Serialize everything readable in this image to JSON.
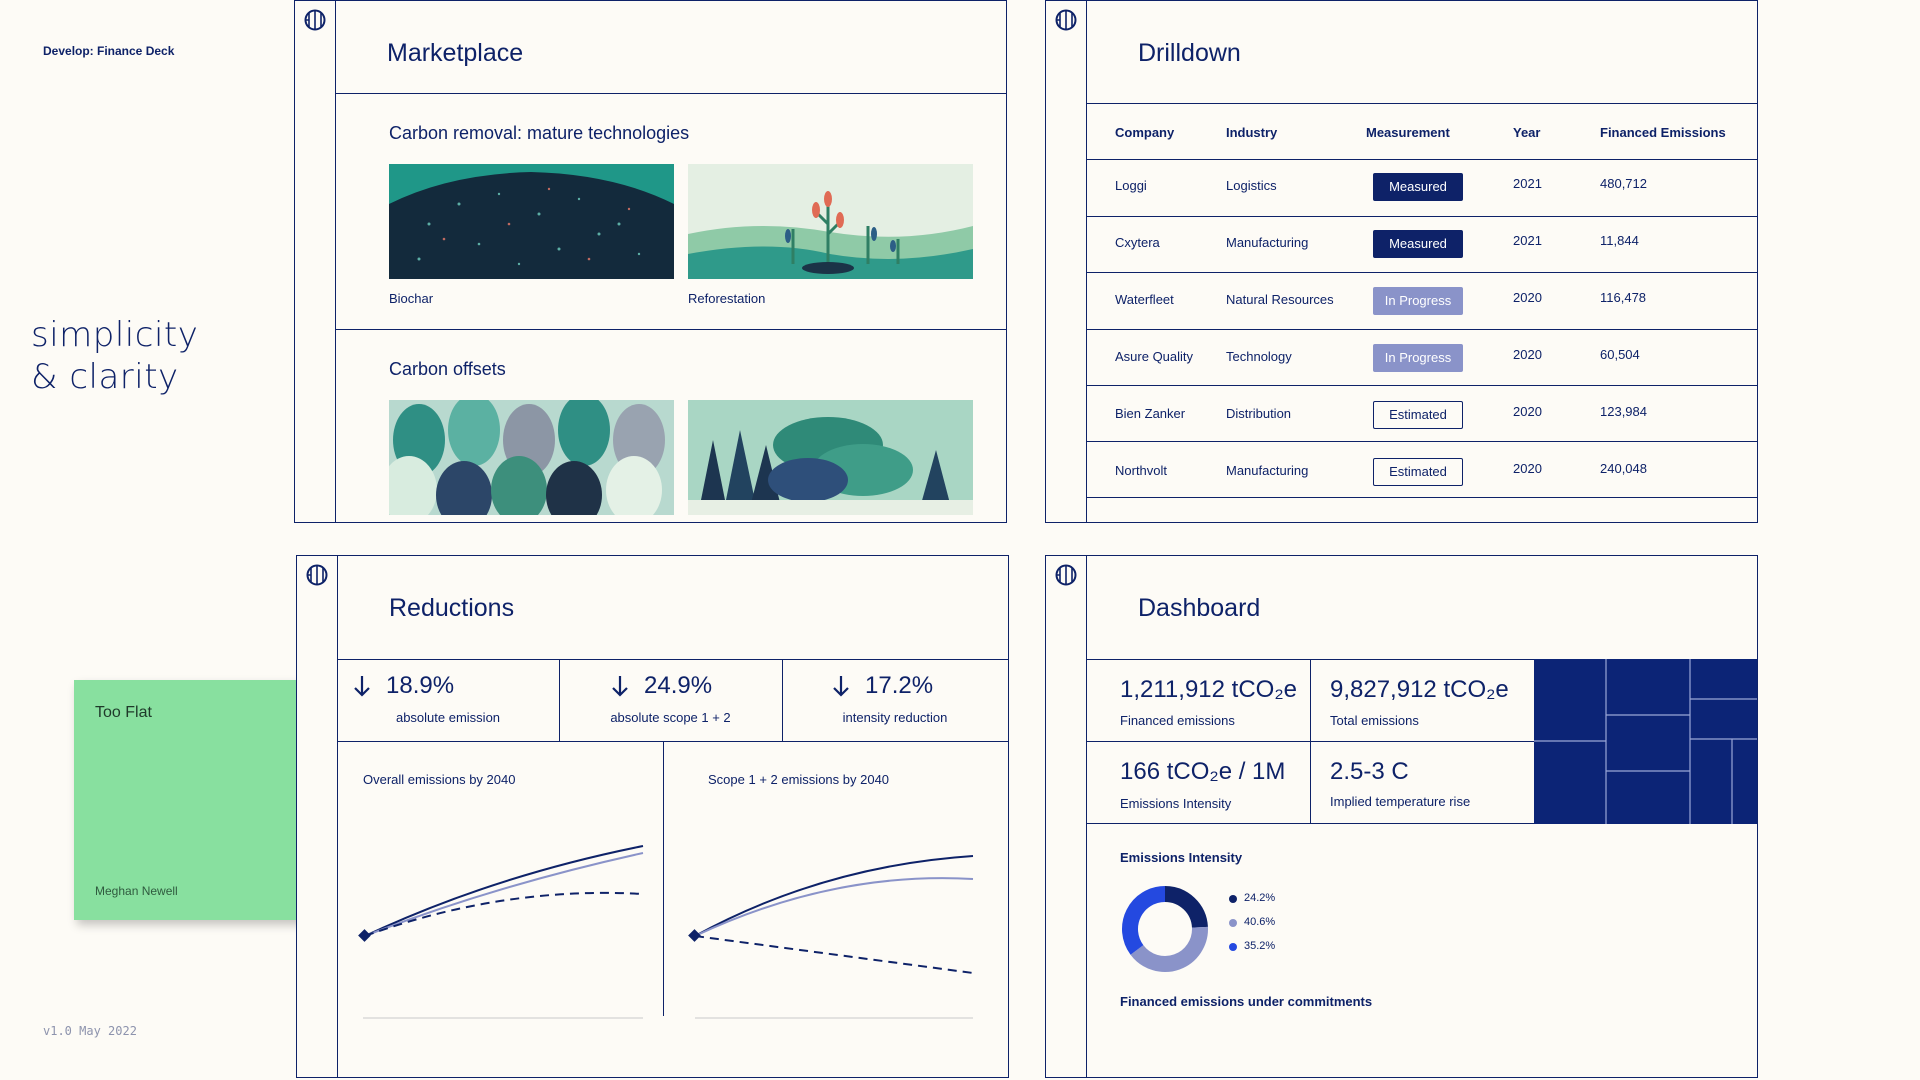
{
  "deck": {
    "label": "Develop: Finance Deck",
    "tagline_line1": "simplicity",
    "tagline_line2": "& clarity",
    "version": "v1.0 May 2022"
  },
  "sticky": {
    "title": "Too Flat",
    "author": "Meghan Newell",
    "color": "#88e09f"
  },
  "colors": {
    "navy": "#0e2268",
    "lilac": "#8a93c9",
    "blue": "#2449e0",
    "bg": "#fdfbf6"
  },
  "marketplace": {
    "title": "Marketplace",
    "sections": [
      {
        "title": "Carbon removal: mature technologies",
        "items": [
          {
            "label": "Biochar"
          },
          {
            "label": "Reforestation"
          }
        ]
      },
      {
        "title": "Carbon offsets",
        "items": [
          {
            "label": ""
          },
          {
            "label": ""
          }
        ]
      }
    ]
  },
  "drilldown": {
    "title": "Drilldown",
    "columns": [
      "Company",
      "Industry",
      "Measurement",
      "Year",
      "Financed Emissions"
    ],
    "rows": [
      {
        "company": "Loggi",
        "industry": "Logistics",
        "measurement": "Measured",
        "year": "2021",
        "emissions": "480,712"
      },
      {
        "company": "Cxytera",
        "industry": "Manufacturing",
        "measurement": "Measured",
        "year": "2021",
        "emissions": "11,844"
      },
      {
        "company": "Waterfleet",
        "industry": "Natural Resources",
        "measurement": "In Progress",
        "year": "2020",
        "emissions": "116,478"
      },
      {
        "company": "Asure Quality",
        "industry": "Technology",
        "measurement": "In Progress",
        "year": "2020",
        "emissions": "60,504"
      },
      {
        "company": "Bien Zanker",
        "industry": "Distribution",
        "measurement": "Estimated",
        "year": "2020",
        "emissions": "123,984"
      },
      {
        "company": "Northvolt",
        "industry": "Manufacturing",
        "measurement": "Estimated",
        "year": "2020",
        "emissions": "240,048"
      }
    ]
  },
  "reductions": {
    "title": "Reductions",
    "stats": [
      {
        "value": "18.9%",
        "label": "absolute emission",
        "icon": "arrow-down-icon"
      },
      {
        "value": "24.9%",
        "label": "absolute scope 1 + 2",
        "icon": "arrow-down-icon"
      },
      {
        "value": "17.2%",
        "label": "intensity reduction",
        "icon": "arrow-down-icon"
      }
    ],
    "charts": [
      {
        "title": "Overall emissions by 2040"
      },
      {
        "title": "Scope 1 + 2  emissions by 2040"
      }
    ]
  },
  "dashboard": {
    "title": "Dashboard",
    "kpis": [
      {
        "value": "1,211,912 tCO₂e",
        "label": "Financed emissions"
      },
      {
        "value": "9,827,912 tCO₂e",
        "label": "Total emissions"
      },
      {
        "value": "166 tCO₂e / 1M",
        "label": "Emissions Intensity"
      },
      {
        "value": "2.5-3 C",
        "label": "Implied temperature rise"
      }
    ],
    "donut": {
      "title": "Emissions Intensity",
      "slices": [
        {
          "label": "24.2%",
          "value": 24.2,
          "color": "#0e2268"
        },
        {
          "label": "40.6%",
          "value": 40.6,
          "color": "#8a93c9"
        },
        {
          "label": "35.2%",
          "value": 35.2,
          "color": "#2449e0"
        }
      ]
    },
    "footer": "Financed emissions under commitments"
  }
}
